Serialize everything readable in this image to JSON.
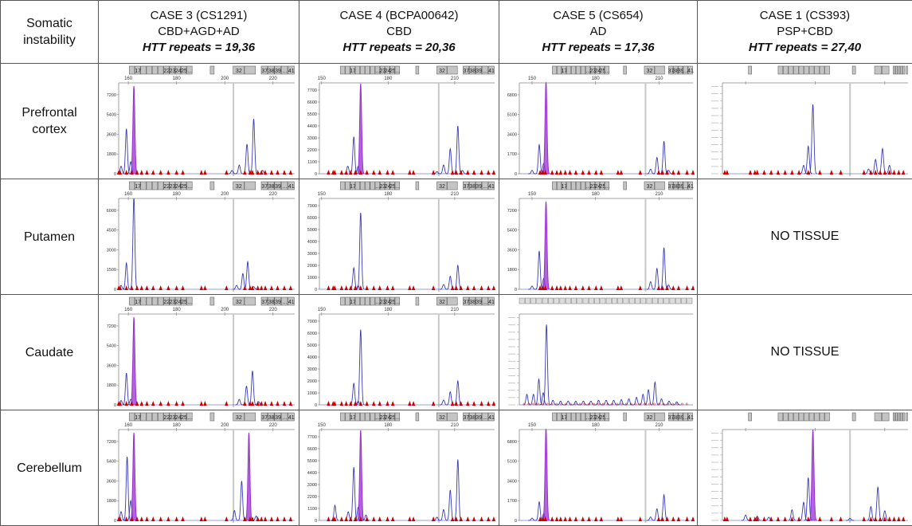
{
  "header": {
    "corner": [
      "Somatic",
      "instability"
    ],
    "cases": [
      {
        "title": "CASE 3 (CS1291)",
        "diagnosis": "CBD+AGD+AD",
        "htt": "HTT repeats = 19,36"
      },
      {
        "title": "CASE 4 (BCPA00642)",
        "diagnosis": "CBD",
        "htt": "HTT repeats = 20,36"
      },
      {
        "title": "CASE 5 (CS654)",
        "diagnosis": "AD",
        "htt": "HTT repeats = 17,36"
      },
      {
        "title": "CASE 1 (CS393)",
        "diagnosis": "PSP+CBD",
        "htt": "HTT repeats = 27,40"
      }
    ]
  },
  "rows": [
    {
      "label": "Prefrontal cortex",
      "lines": [
        "Prefrontal",
        "cortex"
      ]
    },
    {
      "label": "Putamen",
      "lines": [
        "Putamen"
      ]
    },
    {
      "label": "Caudate",
      "lines": [
        "Caudate"
      ]
    },
    {
      "label": "Cerebellum",
      "lines": [
        "Cerebellum"
      ]
    }
  ],
  "no_tissue_label": "NO TISSUE",
  "colors": {
    "trace": "#3a3ab4",
    "saturated_peak": "#9a2fd0",
    "marker": "#cc0000",
    "bin": "#c4c4c4",
    "reference_line": "#c8c8c8"
  },
  "case_axes": [
    {
      "xlim": [
        156,
        229
      ],
      "xticks": [
        160,
        180,
        200,
        220
      ],
      "xtick_labels": [
        "160",
        "180",
        "200",
        "220"
      ],
      "reference_line": 203.6,
      "bins": [
        [
          "",
          "17",
          "",
          "",
          "",
          "",
          "22",
          "23",
          "24",
          "25",
          "..."
        ],
        [
          ""
        ],
        [
          "32",
          ""
        ],
        [
          "37",
          "38",
          "39",
          "...",
          "41"
        ]
      ],
      "markers": [
        156,
        156.6,
        159.2,
        161.4,
        163.6,
        165.5,
        167.7,
        170.3,
        173.4,
        176.6,
        180,
        182.6,
        190.3,
        191.8,
        200.7,
        208.3,
        210.5,
        211.5,
        213.7,
        215.2,
        216.8,
        219.4,
        221.9,
        224.7,
        227.3
      ]
    },
    {
      "xlim": [
        149,
        228
      ],
      "xticks": [
        150,
        180,
        210
      ],
      "xtick_labels": [
        "150",
        "180",
        "210"
      ],
      "reference_line": 202.8,
      "bins": [
        [
          "",
          "",
          "17",
          "",
          "",
          "",
          "",
          "...",
          "23",
          "24",
          "25",
          "..."
        ],
        [
          ""
        ],
        [
          "32",
          ""
        ],
        [
          "37",
          "38",
          "39",
          "...",
          "41"
        ]
      ],
      "markers": [
        153.1,
        155.2,
        155.9,
        159,
        161.1,
        163.1,
        165.2,
        167.6,
        170.4,
        173.5,
        176.2,
        179.7,
        182.1,
        189.7,
        191.4,
        200.4,
        209,
        210.7,
        212.8,
        215.9,
        218.7,
        222.1,
        225.2,
        227.6
      ]
    },
    {
      "xlim": [
        144,
        226
      ],
      "xticks": [
        150,
        180,
        210
      ],
      "xtick_labels": [
        "150",
        "180",
        "210"
      ],
      "reference_line": 203.6,
      "bins": [
        [
          "",
          "",
          "17",
          "",
          "",
          "",
          "",
          "...",
          "23",
          "24",
          "25",
          "..."
        ],
        [
          ""
        ],
        [
          "32",
          ""
        ],
        [
          "37",
          "38",
          "39",
          "...",
          "41"
        ]
      ],
      "markers": [
        153.8,
        155.2,
        156.3,
        159.5,
        161.7,
        163.5,
        165.7,
        167.9,
        170.7,
        174,
        176.9,
        180.2,
        182.7,
        190.6,
        192.1,
        201.1,
        209.8,
        211.6,
        213.8,
        216.7,
        219.2,
        223.2,
        226
      ]
    },
    {
      "xlim": [
        150,
        230
      ],
      "xticks": [
        160,
        190,
        220
      ],
      "xtick_labels": [],
      "reference_line": 205,
      "bins": [
        [
          ""
        ],
        [
          "",
          "",
          "",
          "",
          "",
          "",
          "",
          "",
          "",
          ""
        ],
        [
          ""
        ],
        [
          "",
          ""
        ],
        [
          "",
          "",
          "",
          "",
          ""
        ],
        [
          ""
        ]
      ],
      "markers": [
        151,
        152,
        162,
        164,
        165,
        168,
        171,
        174,
        177,
        180,
        183,
        187,
        192,
        197,
        201,
        211,
        214,
        216,
        218,
        220,
        222,
        224,
        226,
        228
      ]
    }
  ],
  "chart_data": [
    {
      "type": "line",
      "case": 0,
      "tissue": "Prefrontal cortex",
      "yticks": [
        0,
        1800,
        3600,
        5400,
        7200
      ],
      "peaks": [
        {
          "x": 157,
          "y": 700
        },
        {
          "x": 159.2,
          "y": 4100
        },
        {
          "x": 161,
          "y": 1100
        },
        {
          "x": 162.3,
          "y": 8000,
          "saturated": true
        },
        {
          "x": 203,
          "y": 300
        },
        {
          "x": 206,
          "y": 800
        },
        {
          "x": 209.2,
          "y": 2700
        },
        {
          "x": 212,
          "y": 5000
        },
        {
          "x": 215.7,
          "y": 300
        }
      ]
    },
    {
      "type": "line",
      "case": 1,
      "tissue": "Prefrontal cortex",
      "yticks": [
        0,
        1100,
        2200,
        3300,
        4400,
        5500,
        6600,
        7700
      ],
      "peaks": [
        {
          "x": 161.8,
          "y": 700
        },
        {
          "x": 164.5,
          "y": 3400
        },
        {
          "x": 166.5,
          "y": 700
        },
        {
          "x": 167.6,
          "y": 8300,
          "saturated": true
        },
        {
          "x": 202,
          "y": 200
        },
        {
          "x": 205,
          "y": 800
        },
        {
          "x": 208,
          "y": 2300
        },
        {
          "x": 211.4,
          "y": 4400
        },
        {
          "x": 213.5,
          "y": 300
        }
      ]
    },
    {
      "type": "line",
      "case": 2,
      "tissue": "Prefrontal cortex",
      "yticks": [
        0,
        1700,
        3400,
        5100,
        6800
      ],
      "peaks": [
        {
          "x": 150,
          "y": 300
        },
        {
          "x": 153.4,
          "y": 2500
        },
        {
          "x": 155.5,
          "y": 900
        },
        {
          "x": 156.6,
          "y": 8000,
          "saturated": true
        },
        {
          "x": 206,
          "y": 400
        },
        {
          "x": 209,
          "y": 1400
        },
        {
          "x": 212.3,
          "y": 2800
        },
        {
          "x": 214.5,
          "y": 300
        }
      ]
    },
    {
      "type": "line",
      "case": 3,
      "tissue": "Prefrontal cortex",
      "yticks": [],
      "ymax": 7600,
      "peaks": [
        {
          "x": 185,
          "y": 700
        },
        {
          "x": 187,
          "y": 2300
        },
        {
          "x": 189,
          "y": 5800
        },
        {
          "x": 213,
          "y": 400
        },
        {
          "x": 216,
          "y": 1200
        },
        {
          "x": 219,
          "y": 2100
        },
        {
          "x": 222,
          "y": 700
        }
      ]
    },
    {
      "type": "line",
      "case": 0,
      "tissue": "Putamen",
      "yticks": [
        0,
        1500,
        3000,
        4500,
        6000
      ],
      "peaks": [
        {
          "x": 157,
          "y": 300
        },
        {
          "x": 159.2,
          "y": 2000
        },
        {
          "x": 162.3,
          "y": 7000
        },
        {
          "x": 204.9,
          "y": 300
        },
        {
          "x": 207.5,
          "y": 1200
        },
        {
          "x": 209.5,
          "y": 2100
        },
        {
          "x": 212,
          "y": 200
        }
      ]
    },
    {
      "type": "line",
      "case": 1,
      "tissue": "Putamen",
      "yticks": [
        0,
        1000,
        2000,
        3000,
        4000,
        5000,
        6000,
        7000
      ],
      "peaks": [
        {
          "x": 164.5,
          "y": 1800
        },
        {
          "x": 166.5,
          "y": 300
        },
        {
          "x": 167.6,
          "y": 6400
        },
        {
          "x": 205,
          "y": 400
        },
        {
          "x": 208,
          "y": 1100
        },
        {
          "x": 211.4,
          "y": 2000
        }
      ]
    },
    {
      "type": "line",
      "case": 2,
      "tissue": "Putamen",
      "yticks": [
        0,
        1800,
        3600,
        5400,
        7200
      ],
      "peaks": [
        {
          "x": 150,
          "y": 300
        },
        {
          "x": 153.4,
          "y": 3500
        },
        {
          "x": 155.5,
          "y": 1000
        },
        {
          "x": 156.6,
          "y": 8000,
          "saturated": true
        },
        {
          "x": 206,
          "y": 700
        },
        {
          "x": 209,
          "y": 1900
        },
        {
          "x": 212.3,
          "y": 3800
        },
        {
          "x": 214.5,
          "y": 400
        }
      ]
    },
    {
      "type": "line",
      "case": 0,
      "tissue": "Caudate",
      "yticks": [
        0,
        1800,
        3600,
        5400,
        7200
      ],
      "peaks": [
        {
          "x": 157,
          "y": 400
        },
        {
          "x": 159.2,
          "y": 2900
        },
        {
          "x": 161,
          "y": 500
        },
        {
          "x": 162.3,
          "y": 8000,
          "saturated": true
        },
        {
          "x": 206,
          "y": 500
        },
        {
          "x": 209,
          "y": 1700
        },
        {
          "x": 211.5,
          "y": 3100
        },
        {
          "x": 214,
          "y": 300
        }
      ]
    },
    {
      "type": "line",
      "case": 1,
      "tissue": "Caudate",
      "yticks": [
        0,
        1000,
        2000,
        3000,
        4000,
        5000,
        6000,
        7000
      ],
      "peaks": [
        {
          "x": 164.5,
          "y": 1800
        },
        {
          "x": 166.5,
          "y": 300
        },
        {
          "x": 167.6,
          "y": 6300
        },
        {
          "x": 205,
          "y": 400
        },
        {
          "x": 208,
          "y": 1100
        },
        {
          "x": 211.4,
          "y": 2000
        }
      ]
    },
    {
      "type": "line",
      "case": 2,
      "tissue": "Caudate",
      "yticks": [],
      "ymax": 6000,
      "xlim": [
        90,
        250
      ],
      "peaks": [
        {
          "x": 97,
          "y": 700
        },
        {
          "x": 103,
          "y": 700
        },
        {
          "x": 108,
          "y": 1700
        },
        {
          "x": 112,
          "y": 800
        },
        {
          "x": 115,
          "y": 5300
        },
        {
          "x": 121,
          "y": 300
        },
        {
          "x": 128,
          "y": 250
        },
        {
          "x": 135,
          "y": 250
        },
        {
          "x": 142,
          "y": 250
        },
        {
          "x": 149,
          "y": 250
        },
        {
          "x": 156,
          "y": 250
        },
        {
          "x": 163,
          "y": 300
        },
        {
          "x": 170,
          "y": 300
        },
        {
          "x": 177,
          "y": 300
        },
        {
          "x": 184,
          "y": 350
        },
        {
          "x": 191,
          "y": 400
        },
        {
          "x": 198,
          "y": 500
        },
        {
          "x": 204,
          "y": 700
        },
        {
          "x": 209,
          "y": 1000
        },
        {
          "x": 215,
          "y": 1500
        },
        {
          "x": 221,
          "y": 400
        },
        {
          "x": 228,
          "y": 250
        },
        {
          "x": 235,
          "y": 200
        }
      ]
    },
    {
      "type": "line",
      "case": 0,
      "tissue": "Cerebellum",
      "yticks": [
        0,
        1800,
        3600,
        5400,
        7200
      ],
      "peaks": [
        {
          "x": 157,
          "y": 800
        },
        {
          "x": 159.5,
          "y": 5800
        },
        {
          "x": 161,
          "y": 1800
        },
        {
          "x": 162.3,
          "y": 8000,
          "saturated": true
        },
        {
          "x": 204,
          "y": 900
        },
        {
          "x": 207,
          "y": 3600
        },
        {
          "x": 210,
          "y": 8000,
          "saturated": true
        },
        {
          "x": 213,
          "y": 400
        }
      ]
    },
    {
      "type": "line",
      "case": 1,
      "tissue": "Cerebellum",
      "yticks": [
        0,
        1100,
        2200,
        3300,
        4400,
        5500,
        6600,
        7700
      ],
      "peaks": [
        {
          "x": 156,
          "y": 1400
        },
        {
          "x": 162,
          "y": 800
        },
        {
          "x": 164.5,
          "y": 4900
        },
        {
          "x": 166.5,
          "y": 1200
        },
        {
          "x": 167.6,
          "y": 8300,
          "saturated": true
        },
        {
          "x": 170,
          "y": 500
        },
        {
          "x": 202,
          "y": 300
        },
        {
          "x": 205,
          "y": 1000
        },
        {
          "x": 208,
          "y": 2800
        },
        {
          "x": 211.4,
          "y": 5600
        }
      ]
    },
    {
      "type": "line",
      "case": 2,
      "tissue": "Cerebellum",
      "yticks": [
        0,
        1700,
        3400,
        5100,
        6800
      ],
      "peaks": [
        {
          "x": 150,
          "y": 200
        },
        {
          "x": 153.4,
          "y": 1600
        },
        {
          "x": 155.5,
          "y": 600
        },
        {
          "x": 156.6,
          "y": 8000,
          "saturated": true
        },
        {
          "x": 206,
          "y": 300
        },
        {
          "x": 209,
          "y": 1000
        },
        {
          "x": 212.3,
          "y": 2200
        }
      ]
    },
    {
      "type": "line",
      "case": 3,
      "tissue": "Cerebellum",
      "yticks": [],
      "ymax": 8500,
      "peaks": [
        {
          "x": 160,
          "y": 500
        },
        {
          "x": 165,
          "y": 400
        },
        {
          "x": 170,
          "y": 300
        },
        {
          "x": 180,
          "y": 1000
        },
        {
          "x": 185,
          "y": 1700
        },
        {
          "x": 187,
          "y": 4000
        },
        {
          "x": 189,
          "y": 8500,
          "saturated": true
        },
        {
          "x": 205,
          "y": 200
        },
        {
          "x": 214,
          "y": 1300
        },
        {
          "x": 217,
          "y": 3100
        },
        {
          "x": 220,
          "y": 900
        }
      ]
    }
  ]
}
